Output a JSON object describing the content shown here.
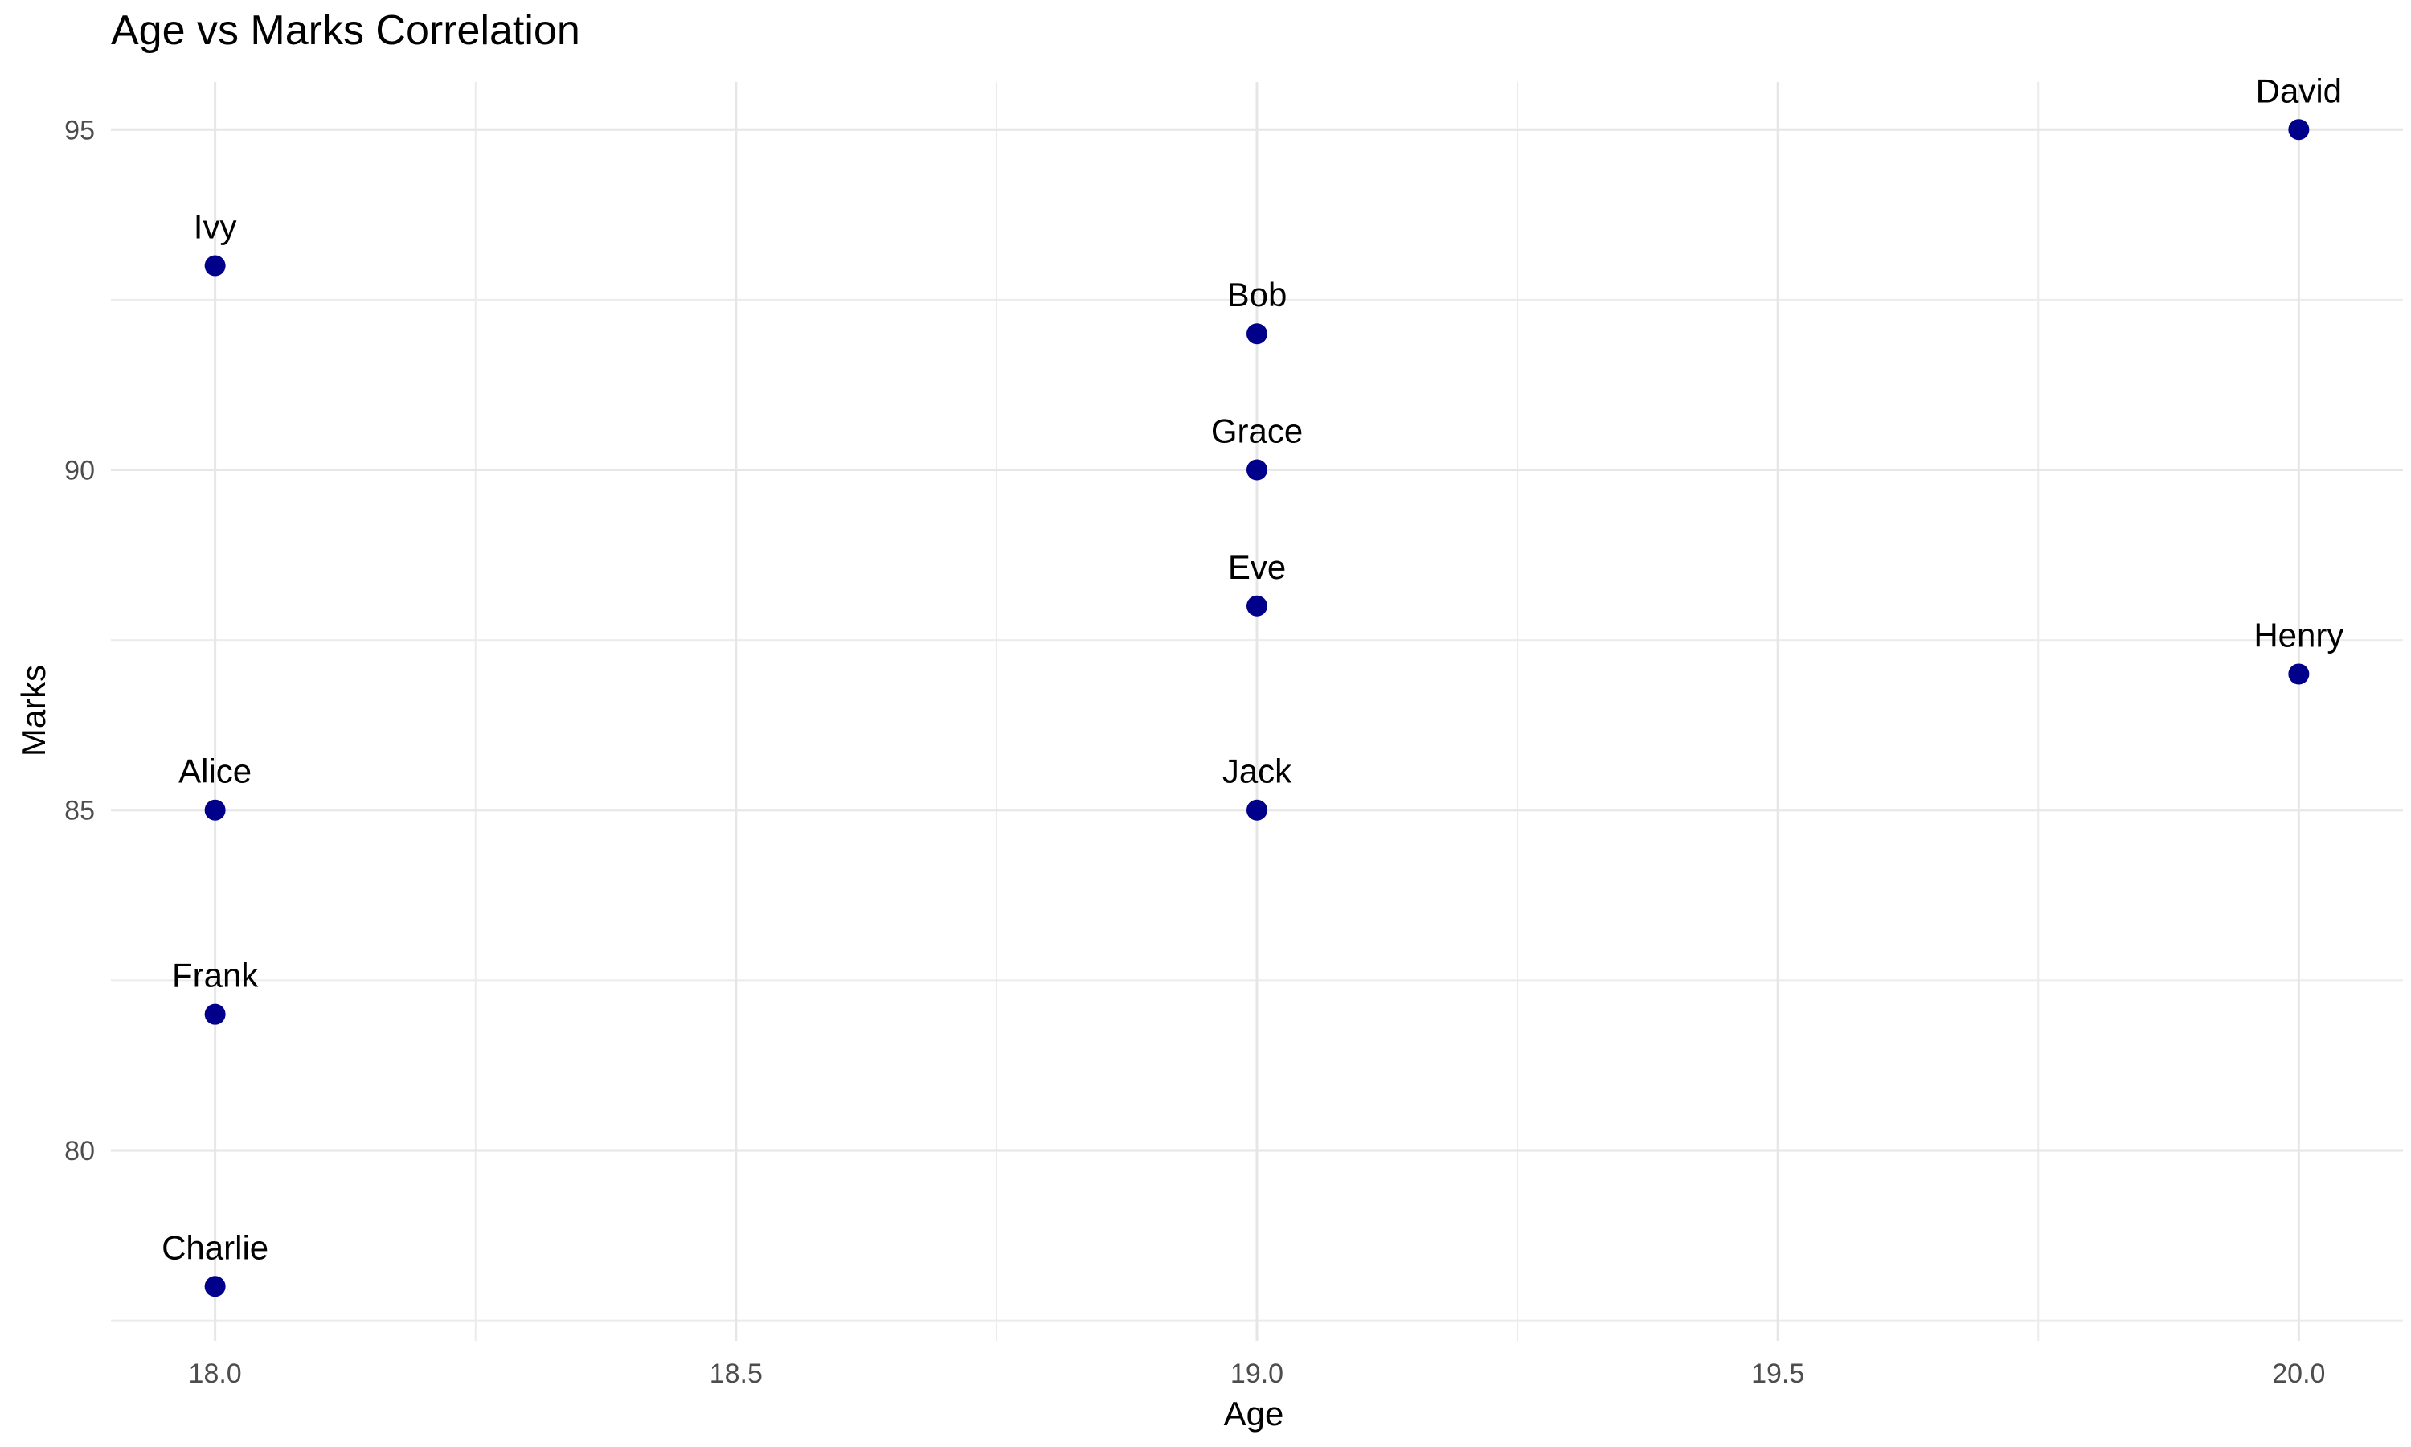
{
  "chart_data": {
    "type": "scatter",
    "title": "Age vs Marks Correlation",
    "xlabel": "Age",
    "ylabel": "Marks",
    "xlim": [
      17.9,
      20.1
    ],
    "ylim": [
      77.2,
      95.7
    ],
    "x_ticks": [
      18.0,
      18.5,
      19.0,
      19.5,
      20.0
    ],
    "x_tick_labels": [
      "18.0",
      "18.5",
      "19.0",
      "19.5",
      "20.0"
    ],
    "x_minor_ticks": [
      18.25,
      18.75,
      19.25,
      19.75
    ],
    "y_ticks": [
      80,
      85,
      90,
      95
    ],
    "y_tick_labels": [
      "80",
      "85",
      "90",
      "95"
    ],
    "y_minor_ticks": [
      77.5,
      82.5,
      87.5,
      92.5
    ],
    "grid": true,
    "point_color": "#00008B",
    "points": [
      {
        "label": "Alice",
        "x": 18,
        "y": 85
      },
      {
        "label": "Bob",
        "x": 19,
        "y": 92
      },
      {
        "label": "Charlie",
        "x": 18,
        "y": 78
      },
      {
        "label": "David",
        "x": 20,
        "y": 95
      },
      {
        "label": "Eve",
        "x": 19,
        "y": 88
      },
      {
        "label": "Frank",
        "x": 18,
        "y": 82
      },
      {
        "label": "Grace",
        "x": 19,
        "y": 90
      },
      {
        "label": "Henry",
        "x": 20,
        "y": 87
      },
      {
        "label": "Ivy",
        "x": 18,
        "y": 93
      },
      {
        "label": "Jack",
        "x": 19,
        "y": 85
      }
    ]
  }
}
